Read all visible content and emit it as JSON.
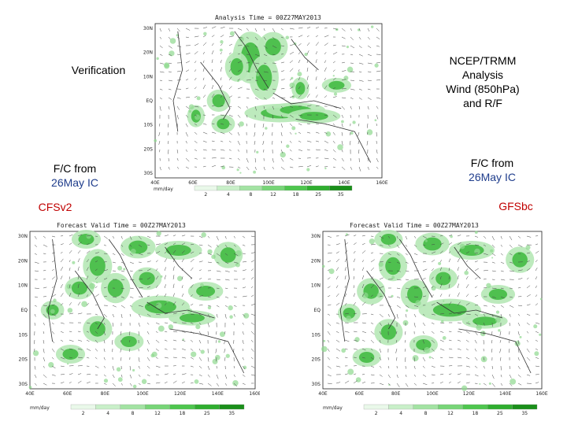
{
  "labels": {
    "verification": "Verification",
    "ncep_line1": "NCEP/TRMM",
    "ncep_line2": "Analysis",
    "ncep_line3": "Wind (850hPa)",
    "ncep_line4": "and R/F",
    "fc_left_line1": "F/C from",
    "fc_left_line2": "26May IC",
    "fc_right_line1": "F/C from",
    "fc_right_line2": "26May IC",
    "model_left": "CFSv2",
    "model_right": "GFSbc"
  },
  "panels": {
    "analysis": {
      "title": "Analysis Time = 00Z27MAY2013"
    },
    "cfs": {
      "title": "Forecast Valid Time = 00Z27MAY2013"
    },
    "gfs": {
      "title": "Forecast Valid Time = 00Z27MAY2013"
    }
  },
  "axes": {
    "lat_ticks": [
      "30N",
      "20N",
      "10N",
      "EQ",
      "10S",
      "20S",
      "30S"
    ],
    "lon_ticks": [
      "40E",
      "60E",
      "80E",
      "100E",
      "120E",
      "140E",
      "160E"
    ]
  },
  "colorbar": {
    "unit": "mm/day",
    "levels": [
      "2",
      "4",
      "8",
      "12",
      "18",
      "25",
      "35"
    ],
    "colors": [
      "#e9f8e9",
      "#c9efc9",
      "#a3e3a3",
      "#77d577",
      "#4ec64e",
      "#2fae2f",
      "#1a8f1a"
    ]
  },
  "colors": {
    "blue_text": "#1f3d8c",
    "red_text": "#c00000",
    "rain": "#3cb83c"
  }
}
